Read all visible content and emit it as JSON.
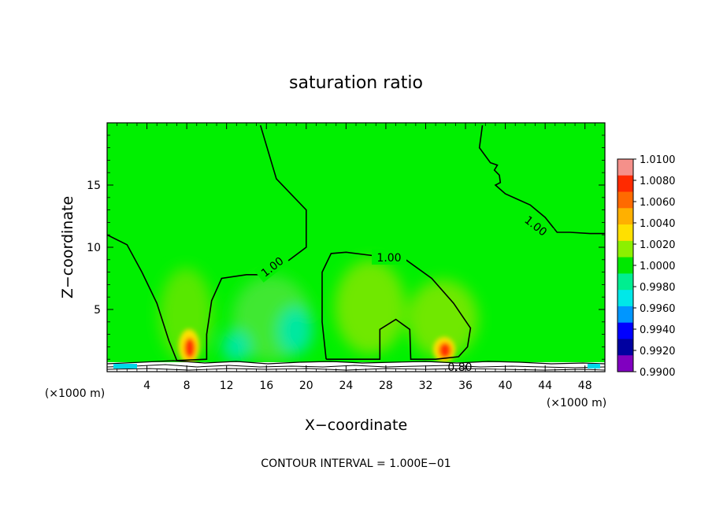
{
  "chart_data": {
    "type": "heatmap",
    "title": "saturation ratio",
    "xlabel": "X−coordinate",
    "ylabel": "Z−coordinate",
    "x_unit": "(×1000 m)",
    "y_unit": "(×1000 m)",
    "xlim": [
      0,
      50
    ],
    "ylim": [
      0,
      20
    ],
    "x_ticks": [
      4,
      8,
      12,
      16,
      20,
      24,
      28,
      32,
      36,
      40,
      44,
      48
    ],
    "y_ticks": [
      5,
      10,
      15
    ],
    "colorbar": {
      "min": 0.99,
      "max": 1.01,
      "tick_labels": [
        "1.0100",
        "1.0080",
        "1.0060",
        "1.0040",
        "1.0020",
        "1.0000",
        "0.9980",
        "0.9960",
        "0.9940",
        "0.9920",
        "0.9900"
      ],
      "colors": [
        "#f5908a",
        "#ff2a00",
        "#ff6a00",
        "#ffb000",
        "#ffe000",
        "#8cf000",
        "#00e800",
        "#00ee90",
        "#00e8e8",
        "#0096ff",
        "#0000ff",
        "#0000a0",
        "#8000c0"
      ]
    },
    "background_value": 1.0,
    "hot_spots": [
      {
        "x": 8.3,
        "z": 1.5,
        "value": 1.009
      },
      {
        "x": 33.6,
        "z": 1.6,
        "value": 1.0085
      }
    ],
    "contours": [
      {
        "level": "1.00",
        "points": [
          [
            0,
            11
          ],
          [
            2,
            10.2
          ],
          [
            3.5,
            8
          ],
          [
            5,
            5.5
          ],
          [
            6.2,
            2.5
          ],
          [
            7,
            0.9
          ],
          [
            10,
            1
          ],
          [
            10,
            3
          ],
          [
            10.5,
            5.7
          ],
          [
            11.5,
            7.5
          ],
          [
            14,
            7.8
          ],
          [
            15.5,
            7.8
          ],
          [
            17.5,
            8.5
          ],
          [
            20,
            10
          ],
          [
            20,
            13
          ],
          [
            17,
            15.5
          ],
          [
            15.4,
            19.8
          ]
        ]
      },
      {
        "level": "1.00",
        "points": [
          [
            22,
            1
          ],
          [
            21.6,
            4
          ],
          [
            21.6,
            8
          ],
          [
            22.5,
            9.5
          ],
          [
            24,
            9.6
          ],
          [
            26,
            9.4
          ],
          [
            28,
            9.2
          ],
          [
            30,
            9
          ],
          [
            32.6,
            7.5
          ],
          [
            34.8,
            5.5
          ],
          [
            36.5,
            3.5
          ],
          [
            36.2,
            2
          ],
          [
            35.3,
            1.2
          ],
          [
            33,
            1
          ],
          [
            30.5,
            1
          ],
          [
            30.4,
            3.4
          ],
          [
            29,
            4.2
          ],
          [
            27.4,
            3.4
          ],
          [
            27.4,
            1
          ],
          [
            22.5,
            1
          ],
          [
            22,
            1
          ]
        ]
      },
      {
        "level": "1.00",
        "points": [
          [
            37.7,
            19.8
          ],
          [
            37.4,
            18
          ],
          [
            38.5,
            16.8
          ],
          [
            39.2,
            16.6
          ],
          [
            38.9,
            16.2
          ],
          [
            39.4,
            15.8
          ],
          [
            39.5,
            15.2
          ],
          [
            39,
            15
          ],
          [
            40,
            14.3
          ],
          [
            42.5,
            13.4
          ],
          [
            44,
            12.4
          ],
          [
            45.2,
            11.2
          ],
          [
            46.5,
            11.2
          ],
          [
            48.5,
            11.1
          ],
          [
            50,
            11.1
          ]
        ]
      }
    ],
    "contour_labels": [
      "1.00",
      "1.00",
      "1.00",
      "0.80"
    ],
    "annotation": "CONTOUR INTERVAL = 1.000E−01"
  }
}
